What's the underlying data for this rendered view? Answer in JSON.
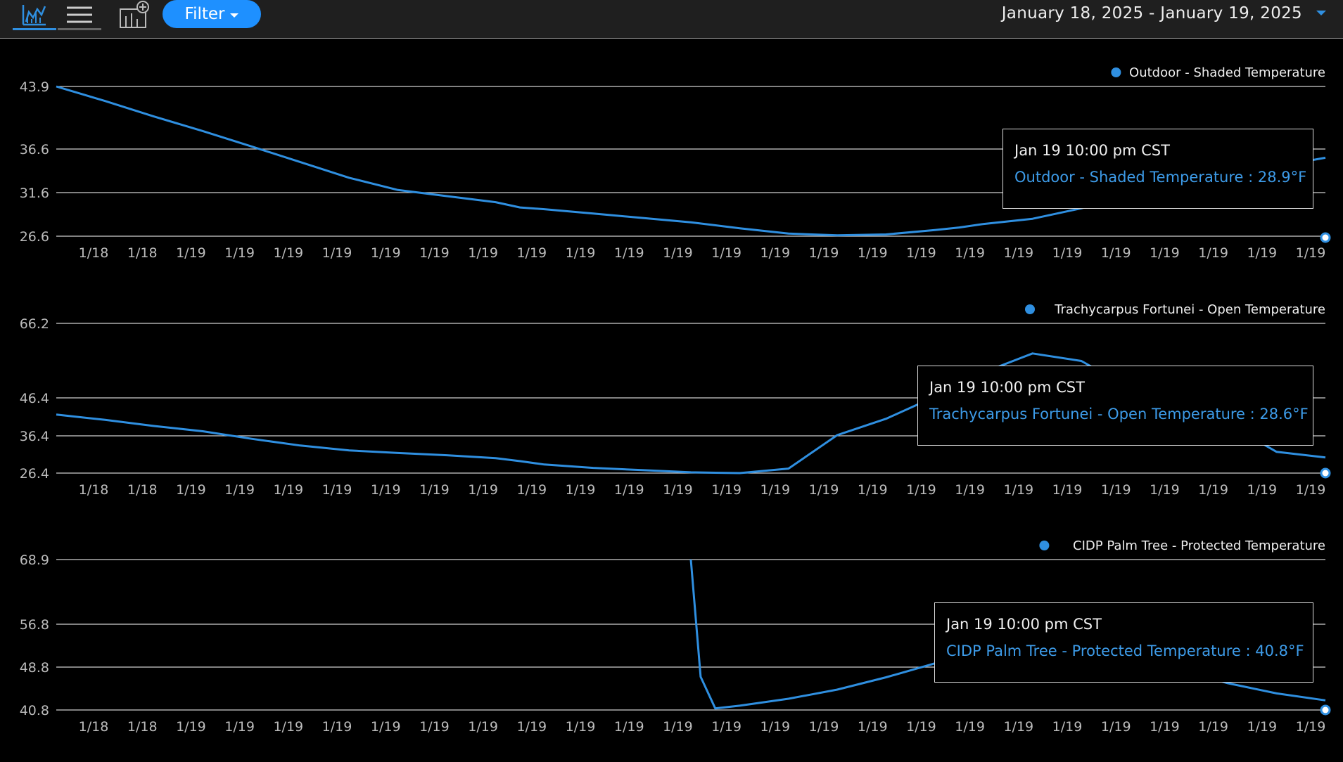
{
  "toolbar": {
    "filter_label": "Filter",
    "date_range": "January 18, 2025 - January 19, 2025",
    "icons": [
      "chart-view-icon",
      "list-view-icon",
      "add-chart-icon"
    ]
  },
  "colors": {
    "series": "#2f8fe0",
    "grid": "#cfcfcf",
    "background": "#000000"
  },
  "chart_data": [
    {
      "type": "line",
      "legend": "Outdoor - Shaded Temperature",
      "legend_position": "top-right",
      "y_ticks": [
        "43.9",
        "36.6",
        "31.6",
        "26.6"
      ],
      "y_tick_values": [
        43.9,
        36.6,
        31.6,
        26.6
      ],
      "x_ticks": [
        "1/18",
        "1/18",
        "1/19",
        "1/19",
        "1/19",
        "1/19",
        "1/19",
        "1/19",
        "1/19",
        "1/19",
        "1/19",
        "1/19",
        "1/19",
        "1/19",
        "1/19",
        "1/19",
        "1/19",
        "1/19",
        "1/19",
        "1/19",
        "1/19",
        "1/19",
        "1/19",
        "1/19",
        "1/19",
        "1/19"
      ],
      "x_range": [
        0,
        26
      ],
      "series": [
        {
          "name": "Outdoor - Shaded Temperature",
          "x": [
            0,
            1,
            2,
            3,
            4,
            5,
            6,
            7,
            8,
            9,
            9.5,
            10,
            11,
            12,
            13,
            14,
            15,
            16,
            17,
            18,
            18.5,
            19,
            20,
            21,
            22,
            23,
            24,
            25,
            26
          ],
          "values": [
            43.9,
            42.2,
            40.4,
            38.7,
            36.9,
            35.1,
            33.3,
            31.9,
            31.2,
            30.5,
            29.9,
            29.7,
            29.2,
            28.7,
            28.2,
            27.5,
            26.9,
            26.7,
            26.8,
            27.3,
            27.6,
            28.0,
            28.6,
            29.8,
            31.3,
            32.3,
            33.2,
            34.6,
            35.6
          ]
        }
      ],
      "tooltip": {
        "time": "Jan 19 10:00 pm CST",
        "label": "Outdoor - Shaded Temperature : 28.9°F"
      }
    },
    {
      "type": "line",
      "legend": "Trachycarpus Fortunei - Open Temperature",
      "legend_position": "top-right",
      "y_ticks": [
        "66.2",
        "46.4",
        "36.4",
        "26.4"
      ],
      "y_tick_values": [
        66.2,
        46.4,
        36.4,
        26.4
      ],
      "x_ticks": [
        "1/18",
        "1/18",
        "1/19",
        "1/19",
        "1/19",
        "1/19",
        "1/19",
        "1/19",
        "1/19",
        "1/19",
        "1/19",
        "1/19",
        "1/19",
        "1/19",
        "1/19",
        "1/19",
        "1/19",
        "1/19",
        "1/19",
        "1/19",
        "1/19",
        "1/19",
        "1/19",
        "1/19",
        "1/19",
        "1/19"
      ],
      "x_range": [
        0,
        26
      ],
      "series": [
        {
          "name": "Trachycarpus Fortunei - Open Temperature",
          "x": [
            0,
            1,
            2,
            3,
            4,
            5,
            6,
            7,
            8,
            9,
            9.5,
            10,
            11,
            12,
            13,
            14,
            15,
            16,
            17,
            18,
            18.5,
            19,
            20,
            21,
            22,
            23,
            24,
            25,
            26
          ],
          "values": [
            42.0,
            40.6,
            39.0,
            37.6,
            35.6,
            33.8,
            32.5,
            31.8,
            31.2,
            30.4,
            29.6,
            28.7,
            27.8,
            27.2,
            26.6,
            26.4,
            27.6,
            36.6,
            40.9,
            46.7,
            48.1,
            53.2,
            58.2,
            56.2,
            48.9,
            44.9,
            39.6,
            32.1,
            30.6
          ]
        }
      ],
      "tooltip": {
        "time": "Jan 19 10:00 pm CST",
        "label": "Trachycarpus Fortunei - Open Temperature : 28.6°F"
      }
    },
    {
      "type": "line",
      "legend": "CIDP Palm Tree - Protected Temperature",
      "legend_position": "top-right",
      "y_ticks": [
        "68.9",
        "56.8",
        "48.8",
        "40.8"
      ],
      "y_tick_values": [
        68.9,
        56.8,
        48.8,
        40.8
      ],
      "x_ticks": [
        "1/18",
        "1/18",
        "1/19",
        "1/19",
        "1/19",
        "1/19",
        "1/19",
        "1/19",
        "1/19",
        "1/19",
        "1/19",
        "1/19",
        "1/19",
        "1/19",
        "1/19",
        "1/19",
        "1/19",
        "1/19",
        "1/19",
        "1/19",
        "1/19",
        "1/19",
        "1/19",
        "1/19",
        "1/19",
        "1/19"
      ],
      "x_range": [
        0,
        26
      ],
      "series": [
        {
          "name": "CIDP Palm Tree - Protected Temperature",
          "x": [
            13,
            13.2,
            13.5,
            14,
            15,
            16,
            17,
            18,
            19,
            20,
            20.5,
            21,
            22,
            23,
            24,
            25,
            26
          ],
          "values": [
            68.9,
            47.0,
            41.1,
            41.6,
            42.9,
            44.6,
            46.9,
            49.5,
            51.6,
            52.4,
            54.0,
            53.5,
            50.6,
            48.4,
            45.8,
            43.9,
            42.6
          ]
        }
      ],
      "tooltip": {
        "time": "Jan 19 10:00 pm CST",
        "label": "CIDP Palm Tree - Protected Temperature : 40.8°F"
      }
    }
  ]
}
